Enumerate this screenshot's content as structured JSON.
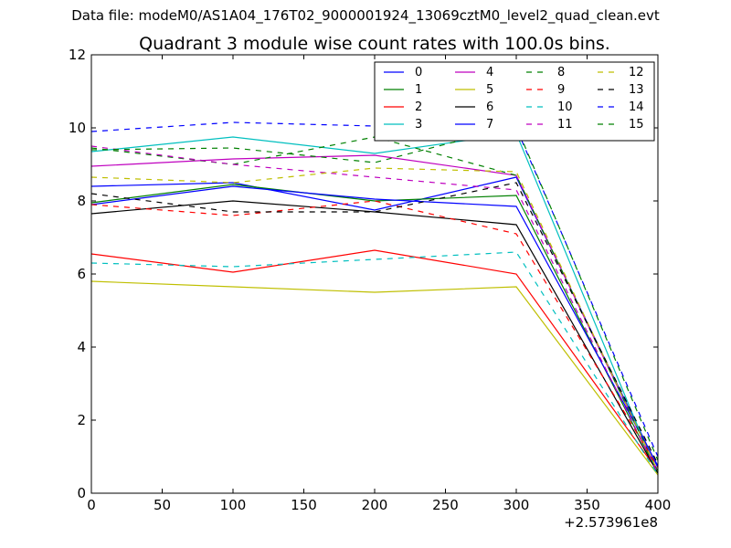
{
  "suptitle": "Data file: modeM0/AS1A04_176T02_9000001924_13069cztM0_level2_quad_clean.evt",
  "chart_data": {
    "type": "line",
    "title": "Quadrant 3 module wise count rates with 100.0s bins.",
    "xlabel": "",
    "ylabel": "",
    "x_offset_label": "+2.573961e8",
    "x": [
      0,
      100,
      200,
      300,
      400
    ],
    "xlim": [
      0,
      400
    ],
    "ylim": [
      0,
      12
    ],
    "xticks": [
      0,
      50,
      100,
      150,
      200,
      250,
      300,
      350,
      400
    ],
    "yticks": [
      0,
      2,
      4,
      6,
      8,
      10,
      12
    ],
    "grid": false,
    "legend_position": "top-right",
    "legend_columns": 4,
    "series": [
      {
        "name": "0",
        "color": "#0000ff",
        "style": "solid",
        "values": [
          8.4,
          8.5,
          7.75,
          8.65,
          0.7
        ]
      },
      {
        "name": "1",
        "color": "#008000",
        "style": "solid",
        "values": [
          7.95,
          8.45,
          8.0,
          8.15,
          0.55
        ]
      },
      {
        "name": "2",
        "color": "#ff0000",
        "style": "solid",
        "values": [
          6.55,
          6.05,
          6.65,
          6.0,
          0.6
        ]
      },
      {
        "name": "3",
        "color": "#00bfbf",
        "style": "solid",
        "values": [
          9.35,
          9.75,
          9.3,
          9.85,
          0.5
        ]
      },
      {
        "name": "4",
        "color": "#bf00bf",
        "style": "solid",
        "values": [
          8.95,
          9.15,
          9.25,
          8.7,
          0.6
        ]
      },
      {
        "name": "5",
        "color": "#bfbf00",
        "style": "solid",
        "values": [
          5.8,
          5.65,
          5.5,
          5.65,
          0.5
        ]
      },
      {
        "name": "6",
        "color": "#000000",
        "style": "solid",
        "values": [
          7.65,
          8.0,
          7.7,
          7.35,
          0.55
        ]
      },
      {
        "name": "7",
        "color": "#0000ff",
        "style": "solid",
        "values": [
          7.9,
          8.4,
          8.05,
          7.85,
          0.75
        ]
      },
      {
        "name": "8",
        "color": "#008000",
        "style": "dashed",
        "values": [
          9.45,
          9.0,
          9.75,
          8.7,
          0.6
        ]
      },
      {
        "name": "9",
        "color": "#ff0000",
        "style": "dashed",
        "values": [
          7.9,
          7.6,
          8.0,
          7.1,
          0.7
        ]
      },
      {
        "name": "10",
        "color": "#00bfbf",
        "style": "dashed",
        "values": [
          6.3,
          6.2,
          6.4,
          6.6,
          0.5
        ]
      },
      {
        "name": "11",
        "color": "#bf00bf",
        "style": "dashed",
        "values": [
          9.5,
          9.0,
          8.65,
          8.3,
          0.55
        ]
      },
      {
        "name": "12",
        "color": "#bfbf00",
        "style": "dashed",
        "values": [
          8.65,
          8.5,
          8.9,
          8.8,
          0.6
        ]
      },
      {
        "name": "13",
        "color": "#000000",
        "style": "dashed",
        "values": [
          8.2,
          7.7,
          7.7,
          8.5,
          0.8
        ]
      },
      {
        "name": "14",
        "color": "#0000ff",
        "style": "dashed",
        "values": [
          9.9,
          10.15,
          10.05,
          10.0,
          1.0
        ]
      },
      {
        "name": "15",
        "color": "#008000",
        "style": "dashed",
        "values": [
          9.4,
          9.45,
          9.05,
          10.05,
          0.9
        ]
      }
    ]
  }
}
